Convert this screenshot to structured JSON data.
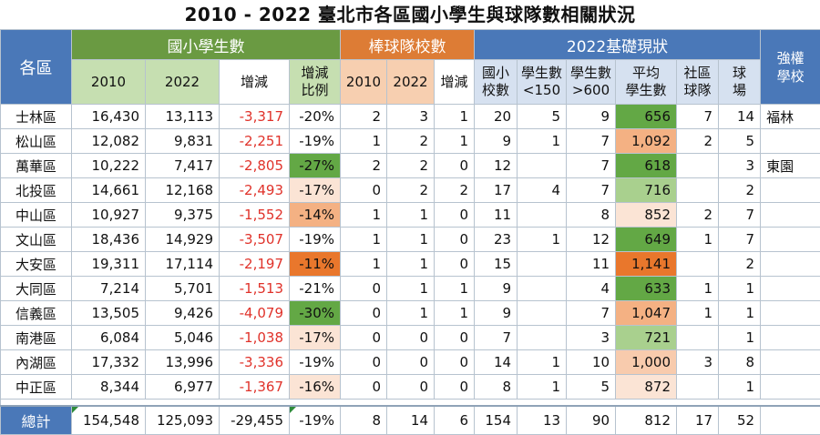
{
  "title": "2010 - 2022 臺北市各區國小學生與球隊數相關狀況",
  "headers": {
    "district": "各區",
    "students_group": "國小學生數",
    "teams_group": "棒球隊校數",
    "status_group": "2022基礎現狀",
    "strong_school": "強權學校",
    "s2010": "2010",
    "s2022": "2022",
    "s_change": "增減",
    "s_ratio": [
      "增減",
      "比例"
    ],
    "t2010": "2010",
    "t2022": "2022",
    "t_change": "增減",
    "schools": [
      "國小",
      "校數"
    ],
    "lt150": [
      "學生數",
      "<150"
    ],
    "gt600": [
      "學生數",
      ">600"
    ],
    "avg": [
      "平均",
      "學生數"
    ],
    "community": [
      "社區",
      "球隊"
    ],
    "fields": [
      "球",
      "場"
    ]
  },
  "colors": {
    "blue_header": "#4a78b8",
    "green_header": "#6a9a42",
    "orange_header": "#dd7c35",
    "negative_text": "#e0322a",
    "scale_green_dark": "#63a845",
    "scale_green_mid": "#a9d08e",
    "scale_peach_light": "#fbe4d5",
    "scale_orange_mid": "#f4b183",
    "scale_orange_dark": "#e9772c"
  },
  "rows": [
    {
      "d": "士林區",
      "s10": "16,430",
      "s22": "13,113",
      "ch": "-3,317",
      "pct": "-20%",
      "t10": "2",
      "t22": "3",
      "tc": "1",
      "sc": "20",
      "lt": "5",
      "gt": "9",
      "avg": "656",
      "com": "7",
      "fld": "14",
      "str": "福林"
    },
    {
      "d": "松山區",
      "s10": "12,082",
      "s22": "9,831",
      "ch": "-2,251",
      "pct": "-19%",
      "t10": "1",
      "t22": "2",
      "tc": "1",
      "sc": "9",
      "lt": "1",
      "gt": "7",
      "avg": "1,092",
      "com": "2",
      "fld": "5",
      "str": ""
    },
    {
      "d": "萬華區",
      "s10": "10,222",
      "s22": "7,417",
      "ch": "-2,805",
      "pct": "-27%",
      "t10": "2",
      "t22": "2",
      "tc": "0",
      "sc": "12",
      "lt": "",
      "gt": "7",
      "avg": "618",
      "com": "",
      "fld": "3",
      "str": "東園"
    },
    {
      "d": "北投區",
      "s10": "14,661",
      "s22": "12,168",
      "ch": "-2,493",
      "pct": "-17%",
      "t10": "0",
      "t22": "2",
      "tc": "2",
      "sc": "17",
      "lt": "4",
      "gt": "7",
      "avg": "716",
      "com": "",
      "fld": "2",
      "str": ""
    },
    {
      "d": "中山區",
      "s10": "10,927",
      "s22": "9,375",
      "ch": "-1,552",
      "pct": "-14%",
      "t10": "1",
      "t22": "1",
      "tc": "0",
      "sc": "11",
      "lt": "",
      "gt": "8",
      "avg": "852",
      "com": "2",
      "fld": "7",
      "str": ""
    },
    {
      "d": "文山區",
      "s10": "18,436",
      "s22": "14,929",
      "ch": "-3,507",
      "pct": "-19%",
      "t10": "1",
      "t22": "1",
      "tc": "0",
      "sc": "23",
      "lt": "1",
      "gt": "12",
      "avg": "649",
      "com": "1",
      "fld": "7",
      "str": ""
    },
    {
      "d": "大安區",
      "s10": "19,311",
      "s22": "17,114",
      "ch": "-2,197",
      "pct": "-11%",
      "t10": "1",
      "t22": "1",
      "tc": "0",
      "sc": "15",
      "lt": "",
      "gt": "11",
      "avg": "1,141",
      "com": "",
      "fld": "2",
      "str": ""
    },
    {
      "d": "大同區",
      "s10": "7,214",
      "s22": "5,701",
      "ch": "-1,513",
      "pct": "-21%",
      "t10": "0",
      "t22": "1",
      "tc": "1",
      "sc": "9",
      "lt": "",
      "gt": "4",
      "avg": "633",
      "com": "1",
      "fld": "1",
      "str": ""
    },
    {
      "d": "信義區",
      "s10": "13,505",
      "s22": "9,426",
      "ch": "-4,079",
      "pct": "-30%",
      "t10": "0",
      "t22": "1",
      "tc": "1",
      "sc": "9",
      "lt": "",
      "gt": "7",
      "avg": "1,047",
      "com": "1",
      "fld": "1",
      "str": ""
    },
    {
      "d": "南港區",
      "s10": "6,084",
      "s22": "5,046",
      "ch": "-1,038",
      "pct": "-17%",
      "t10": "0",
      "t22": "0",
      "tc": "0",
      "sc": "7",
      "lt": "",
      "gt": "3",
      "avg": "721",
      "com": "",
      "fld": "1",
      "str": ""
    },
    {
      "d": "內湖區",
      "s10": "17,332",
      "s22": "13,996",
      "ch": "-3,336",
      "pct": "-19%",
      "t10": "0",
      "t22": "0",
      "tc": "0",
      "sc": "14",
      "lt": "1",
      "gt": "10",
      "avg": "1,000",
      "com": "3",
      "fld": "8",
      "str": ""
    },
    {
      "d": "中正區",
      "s10": "8,344",
      "s22": "6,977",
      "ch": "-1,367",
      "pct": "-16%",
      "t10": "0",
      "t22": "0",
      "tc": "0",
      "sc": "8",
      "lt": "1",
      "gt": "5",
      "avg": "872",
      "com": "",
      "fld": "1",
      "str": ""
    }
  ],
  "pct_colors": [
    "#ffffff",
    "#ffffff",
    "#63a845",
    "#fbe4d5",
    "#f4b183",
    "#ffffff",
    "#e9772c",
    "#ffffff",
    "#63a845",
    "#fbe4d5",
    "#ffffff",
    "#fbe4d5"
  ],
  "avg_colors": [
    "#63a845",
    "#f4b183",
    "#63a845",
    "#a9d08e",
    "#fbe4d5",
    "#63a845",
    "#e9772c",
    "#63a845",
    "#f4b183",
    "#a9d08e",
    "#f8cbad",
    "#fbe4d5"
  ],
  "total": {
    "d": "總計",
    "s10": "154,548",
    "s22": "125,093",
    "ch": "-29,455",
    "pct": "-19%",
    "t10": "8",
    "t22": "14",
    "tc": "6",
    "sc": "154",
    "lt": "13",
    "gt": "90",
    "avg": "812",
    "com": "17",
    "fld": "52",
    "str": ""
  }
}
